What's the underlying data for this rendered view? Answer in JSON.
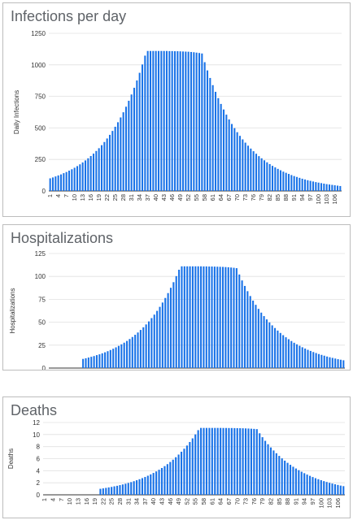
{
  "charts": [
    {
      "title": "Infections per day",
      "ylabel": "Daily Infections",
      "yticks": [
        "0",
        "250",
        "500",
        "750",
        "1000",
        "1250"
      ]
    },
    {
      "title": "Hospitalizations",
      "ylabel": "Hospitalizations",
      "yticks": [
        "0",
        "25",
        "50",
        "75",
        "100",
        "125"
      ]
    },
    {
      "title": "Deaths",
      "ylabel": "Deaths",
      "yticks": [
        "0",
        "2",
        "4",
        "6",
        "8",
        "10",
        "12"
      ]
    }
  ],
  "colors": {
    "bar": "#1a73e8",
    "grid": "#e0e0e0",
    "axis": "#333333"
  },
  "chart_data": [
    {
      "type": "bar",
      "title": "Infections per day",
      "xlabel": "",
      "ylabel": "Daily Infections",
      "x_range": [
        1,
        108
      ],
      "ylim": [
        0,
        1250
      ],
      "x_tick_labels": [
        "1",
        "4",
        "7",
        "10",
        "13",
        "16",
        "19",
        "22",
        "25",
        "28",
        "31",
        "34",
        "37",
        "40",
        "43",
        "46",
        "49",
        "52",
        "55",
        "58",
        "61",
        "64",
        "67",
        "70",
        "73",
        "76",
        "79",
        "82",
        "85",
        "88",
        "91",
        "94",
        "97",
        "100",
        "103",
        "106"
      ],
      "grid": true,
      "values": [
        100,
        107,
        115,
        123,
        131,
        141,
        150,
        161,
        172,
        184,
        197,
        211,
        226,
        242,
        259,
        277,
        296,
        317,
        339,
        363,
        388,
        416,
        445,
        476,
        509,
        545,
        583,
        624,
        668,
        715,
        765,
        818,
        876,
        937,
        1003,
        1073,
        1110,
        1110,
        1110,
        1110,
        1110,
        1110,
        1110,
        1110,
        1109,
        1109,
        1108,
        1108,
        1107,
        1106,
        1105,
        1104,
        1102,
        1100,
        1097,
        1094,
        1090,
        1021,
        956,
        896,
        839,
        786,
        736,
        690,
        646,
        605,
        567,
        531,
        498,
        466,
        437,
        409,
        383,
        359,
        336,
        315,
        295,
        276,
        259,
        243,
        227,
        213,
        199,
        187,
        175,
        164,
        153,
        144,
        135,
        126,
        118,
        111,
        104,
        97,
        91,
        85,
        80,
        75,
        70,
        66,
        62,
        58,
        54,
        51,
        48,
        45,
        42,
        39
      ]
    },
    {
      "type": "bar",
      "title": "Hospitalizations",
      "xlabel": "",
      "ylabel": "Hospitalizations",
      "x_range": [
        1,
        108
      ],
      "ylim": [
        0,
        125
      ],
      "x_tick_labels": [
        "1",
        "4",
        "7",
        "10",
        "13",
        "16",
        "19",
        "22",
        "25",
        "28",
        "31",
        "34",
        "37",
        "40",
        "43",
        "46",
        "49",
        "52",
        "55",
        "58",
        "61",
        "64",
        "67",
        "70",
        "73",
        "76",
        "79",
        "82",
        "85",
        "88",
        "91",
        "94",
        "97",
        "100",
        "103",
        "106"
      ],
      "grid": true,
      "values": [
        0,
        0,
        0,
        0,
        0,
        0,
        0,
        0,
        0,
        0,
        0,
        0,
        10,
        10.7,
        11.5,
        12.3,
        13.1,
        14.1,
        15,
        16.1,
        17.2,
        18.4,
        19.7,
        21.1,
        22.6,
        24.2,
        25.9,
        27.7,
        29.6,
        31.7,
        33.9,
        36.3,
        38.8,
        41.6,
        44.5,
        47.6,
        50.9,
        54.5,
        58.3,
        62.4,
        66.8,
        71.5,
        76.5,
        81.8,
        87.6,
        93.7,
        100.3,
        107.3,
        111,
        111,
        111,
        111,
        111,
        111,
        111,
        111,
        110.9,
        110.9,
        110.8,
        110.8,
        110.7,
        110.6,
        110.5,
        110.4,
        110.2,
        110,
        109.7,
        109.4,
        109,
        102.1,
        95.6,
        89.6,
        83.9,
        78.6,
        73.6,
        69,
        64.6,
        60.5,
        56.7,
        53.1,
        49.8,
        46.6,
        43.7,
        40.9,
        38.3,
        35.9,
        33.6,
        31.5,
        29.5,
        27.6,
        25.9,
        24.3,
        22.7,
        21.3,
        19.9,
        18.7,
        17.5,
        16.4,
        15.3,
        14.4,
        13.5,
        12.6,
        11.8,
        11.1,
        10.4,
        9.7,
        9.1,
        8.5
      ]
    },
    {
      "type": "bar",
      "title": "Deaths",
      "xlabel": "",
      "ylabel": "Deaths",
      "x_range": [
        1,
        108
      ],
      "ylim": [
        0,
        12
      ],
      "x_tick_labels": [
        "1",
        "4",
        "7",
        "10",
        "13",
        "16",
        "19",
        "22",
        "25",
        "28",
        "31",
        "34",
        "37",
        "40",
        "43",
        "46",
        "49",
        "52",
        "55",
        "58",
        "61",
        "64",
        "67",
        "70",
        "73",
        "76",
        "79",
        "82",
        "85",
        "88",
        "91",
        "94",
        "97",
        "100",
        "103",
        "106"
      ],
      "grid": true,
      "values": [
        0,
        0,
        0,
        0,
        0,
        0,
        0,
        0,
        0,
        0,
        0,
        0,
        0,
        0,
        0,
        0,
        0,
        0,
        0,
        0,
        1,
        1.07,
        1.15,
        1.23,
        1.31,
        1.41,
        1.5,
        1.61,
        1.72,
        1.84,
        1.97,
        2.11,
        2.26,
        2.42,
        2.59,
        2.77,
        2.96,
        3.17,
        3.39,
        3.63,
        3.88,
        4.16,
        4.45,
        4.76,
        5.09,
        5.45,
        5.83,
        6.24,
        6.68,
        7.15,
        7.65,
        8.18,
        8.76,
        9.37,
        10.03,
        10.73,
        11.1,
        11.1,
        11.1,
        11.1,
        11.1,
        11.1,
        11.1,
        11.1,
        11.09,
        11.09,
        11.08,
        11.08,
        11.07,
        11.06,
        11.05,
        11.04,
        11.02,
        11,
        10.97,
        10.94,
        10.9,
        10.21,
        9.56,
        8.96,
        8.39,
        7.86,
        7.36,
        6.9,
        6.46,
        6.05,
        5.67,
        5.31,
        4.98,
        4.66,
        4.37,
        4.09,
        3.83,
        3.59,
        3.36,
        3.15,
        2.95,
        2.76,
        2.59,
        2.43,
        2.27,
        2.13,
        1.99,
        1.87,
        1.75,
        1.64,
        1.53,
        1.44
      ]
    }
  ]
}
